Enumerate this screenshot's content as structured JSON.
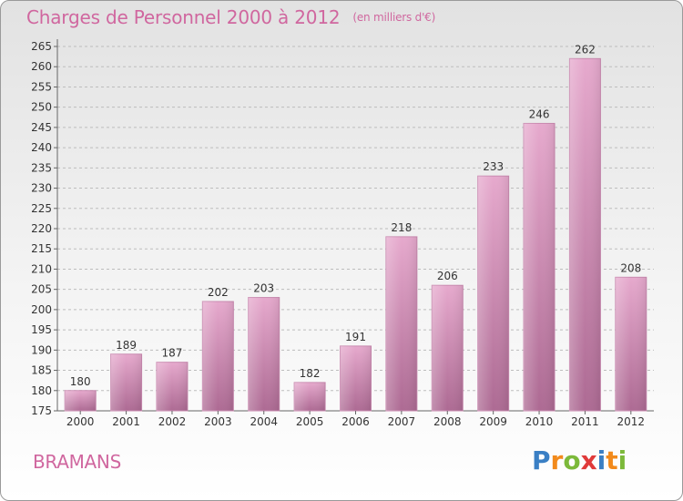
{
  "header": {
    "title": "Charges de Personnel 2000 à 2012",
    "subtitle": "(en milliers d'€)"
  },
  "footer": {
    "commune": "BRAMANS",
    "logo_text": "Proxiti",
    "logo_letters": [
      {
        "ch": "P",
        "color": "#3a7fc4"
      },
      {
        "ch": "r",
        "color": "#f28a1c"
      },
      {
        "ch": "o",
        "color": "#7cb93a"
      },
      {
        "ch": "x",
        "color": "#e03a3a"
      },
      {
        "ch": "i",
        "color": "#3a7fc4"
      },
      {
        "ch": "t",
        "color": "#f28a1c"
      },
      {
        "ch": "i",
        "color": "#7cb93a"
      }
    ]
  },
  "colors": {
    "accent": "#d0679f",
    "bar_top": "#e6a9cd",
    "bar_bottom": "#ad6a93",
    "grid": "#bdbdbd"
  },
  "chart_data": {
    "type": "bar",
    "title": "Charges de Personnel 2000 à 2012",
    "subtitle": "(en milliers d'€)",
    "categories": [
      "2000",
      "2001",
      "2002",
      "2003",
      "2004",
      "2005",
      "2006",
      "2007",
      "2008",
      "2009",
      "2010",
      "2011",
      "2012"
    ],
    "values": [
      180,
      189,
      187,
      202,
      203,
      182,
      191,
      218,
      206,
      233,
      246,
      262,
      208
    ],
    "xlabel": "",
    "ylabel": "",
    "ylim": [
      175,
      265
    ],
    "ytick_step": 5,
    "grid": true
  }
}
